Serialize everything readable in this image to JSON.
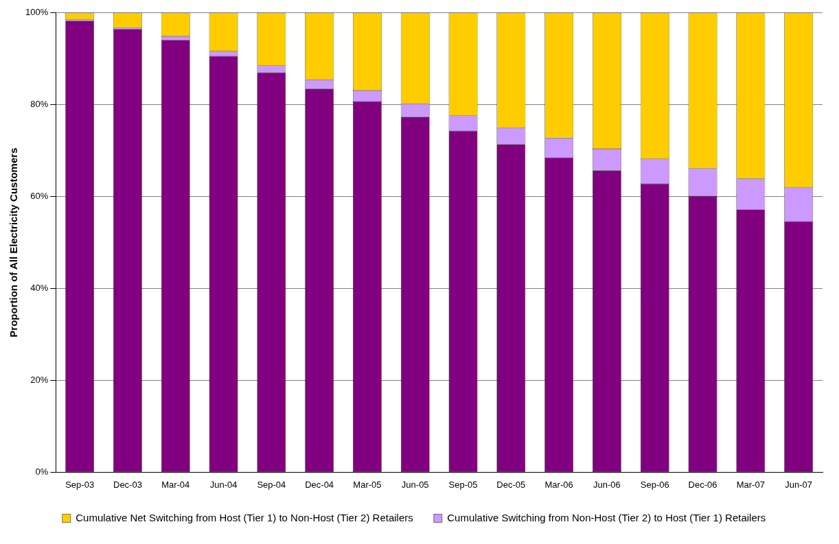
{
  "chart_data": {
    "type": "bar",
    "stacked": true,
    "ylabel": "Proportion of All Electricity Customers",
    "categories": [
      "Sep-03",
      "Dec-03",
      "Mar-04",
      "Jun-04",
      "Sep-04",
      "Dec-04",
      "Mar-05",
      "Jun-05",
      "Sep-05",
      "Dec-05",
      "Mar-06",
      "Jun-06",
      "Sep-06",
      "Dec-06",
      "Mar-07",
      "Jun-07"
    ],
    "series": [
      {
        "color": "#800080",
        "values": [
          98.3,
          96.5,
          94.1,
          90.6,
          87.0,
          83.5,
          80.7,
          77.4,
          74.3,
          71.4,
          68.5,
          65.7,
          62.8,
          60.1,
          57.2,
          54.6
        ]
      },
      {
        "name": "Cumulative Switching from Non-Host (Tier 2) to Host (Tier 1) Retailers",
        "color": "#cc99ff",
        "values": [
          0.3,
          0.3,
          0.8,
          1.1,
          1.5,
          1.9,
          2.4,
          2.8,
          3.3,
          3.6,
          4.2,
          4.7,
          5.4,
          6.0,
          6.7,
          7.4
        ]
      },
      {
        "name": "Cumulative Net Switching from Host (Tier 1) to Non-Host (Tier 2) Retailers",
        "color": "#ffcc00",
        "values": [
          1.4,
          3.2,
          5.1,
          8.3,
          11.5,
          14.6,
          16.9,
          19.8,
          22.4,
          25.0,
          27.3,
          29.6,
          31.8,
          33.9,
          36.1,
          38.0
        ]
      }
    ],
    "ylim": [
      0,
      100
    ],
    "yticks": [
      {
        "value": 0,
        "label": "0%"
      },
      {
        "value": 20,
        "label": "20%"
      },
      {
        "value": 40,
        "label": "40%"
      },
      {
        "value": 60,
        "label": "60%"
      },
      {
        "value": 80,
        "label": "80%"
      },
      {
        "value": 100,
        "label": "100%"
      }
    ],
    "grid": "y",
    "legend": "bottom"
  }
}
